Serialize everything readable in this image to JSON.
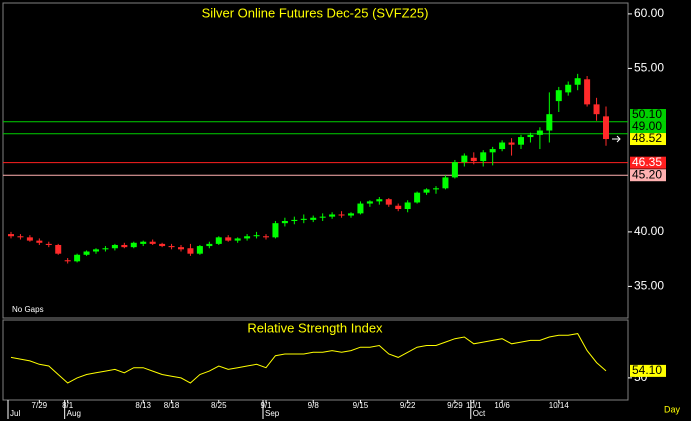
{
  "chart_data": [
    {
      "type": "candlestick",
      "title": "Silver Online Futures Dec-25 (SVFZ25)",
      "note": "No Gaps",
      "period": "Day",
      "categories": [
        null,
        null,
        null,
        "7/29",
        null,
        null,
        "8/1",
        null,
        null,
        null,
        null,
        null,
        null,
        null,
        "8/13",
        null,
        null,
        "8/18",
        null,
        null,
        null,
        null,
        "8/25",
        null,
        null,
        null,
        null,
        "9/1",
        null,
        null,
        null,
        null,
        "9/8",
        null,
        null,
        null,
        null,
        "9/15",
        null,
        null,
        null,
        null,
        "9/22",
        null,
        null,
        null,
        null,
        "9/29",
        null,
        "10/1",
        null,
        null,
        "10/6",
        null,
        null,
        null,
        null,
        null,
        "10/14",
        null,
        null,
        null,
        null,
        null
      ],
      "months": [
        "Jul",
        "Aug",
        "Sep",
        "Oct"
      ],
      "month_starts": [
        0,
        6,
        27,
        49
      ],
      "open": [
        39.8,
        39.6,
        39.5,
        39.2,
        38.9,
        38.8,
        37.4,
        37.3,
        37.9,
        38.2,
        38.4,
        38.5,
        38.8,
        38.6,
        38.9,
        39.1,
        38.9,
        38.7,
        38.6,
        38.5,
        38.0,
        38.7,
        38.9,
        39.5,
        39.2,
        39.4,
        39.6,
        39.6,
        39.5,
        40.8,
        41.0,
        41.1,
        41.1,
        41.3,
        41.4,
        41.6,
        41.5,
        41.7,
        42.6,
        42.8,
        43.0,
        42.4,
        42.1,
        42.7,
        43.6,
        43.9,
        44.0,
        45.0,
        46.4,
        46.8,
        46.5,
        47.3,
        47.6,
        48.2,
        48.0,
        48.7,
        48.9,
        49.3,
        52.0,
        52.8,
        53.5,
        54.0,
        51.7,
        50.6
      ],
      "high": [
        40.0,
        39.8,
        39.7,
        39.4,
        39.1,
        38.9,
        37.6,
        38.0,
        38.3,
        38.5,
        38.7,
        38.9,
        39.0,
        39.1,
        39.2,
        39.3,
        39.0,
        38.9,
        38.8,
        38.9,
        38.8,
        39.1,
        39.6,
        39.7,
        39.5,
        39.8,
        40.0,
        39.8,
        41.0,
        41.3,
        41.4,
        41.6,
        41.5,
        41.7,
        41.8,
        41.9,
        41.8,
        42.8,
        42.9,
        43.2,
        43.1,
        42.6,
        42.9,
        43.7,
        44.0,
        44.2,
        45.2,
        46.6,
        47.2,
        47.3,
        47.5,
        47.8,
        48.4,
        48.6,
        48.9,
        49.1,
        49.6,
        52.8,
        53.3,
        53.8,
        54.5,
        54.3,
        52.3,
        51.5
      ],
      "low": [
        39.4,
        39.3,
        39.1,
        38.8,
        38.6,
        37.9,
        37.1,
        37.2,
        37.8,
        38.0,
        38.2,
        38.3,
        38.5,
        38.5,
        38.7,
        38.8,
        38.6,
        38.4,
        38.2,
        37.8,
        37.9,
        38.5,
        38.8,
        39.1,
        39.0,
        39.2,
        39.4,
        39.3,
        39.4,
        40.5,
        40.7,
        40.8,
        40.9,
        41.0,
        41.2,
        41.3,
        41.3,
        41.6,
        42.3,
        42.5,
        42.3,
        41.9,
        41.8,
        42.6,
        43.4,
        43.5,
        43.9,
        44.9,
        46.0,
        46.2,
        46.0,
        46.1,
        47.4,
        47.0,
        47.6,
        48.2,
        47.6,
        48.2,
        51.0,
        52.5,
        53.0,
        51.5,
        50.2,
        47.9
      ],
      "close": [
        39.6,
        39.5,
        39.2,
        39.0,
        38.8,
        38.0,
        37.3,
        37.9,
        38.2,
        38.4,
        38.5,
        38.8,
        38.6,
        39.0,
        39.1,
        38.9,
        38.7,
        38.6,
        38.4,
        38.0,
        38.7,
        38.9,
        39.5,
        39.2,
        39.4,
        39.6,
        39.7,
        39.5,
        40.8,
        41.0,
        41.1,
        41.2,
        41.3,
        41.4,
        41.6,
        41.5,
        41.7,
        42.6,
        42.8,
        43.0,
        42.5,
        42.1,
        42.7,
        43.6,
        43.9,
        44.0,
        45.0,
        46.4,
        47.0,
        46.5,
        47.3,
        47.6,
        48.2,
        48.0,
        48.7,
        48.9,
        49.3,
        50.8,
        53.0,
        53.5,
        54.1,
        51.7,
        50.8,
        48.52
      ],
      "up_color": "#00ff00",
      "down_color": "#ff2a2a",
      "ylim": [
        32.1,
        61.0
      ],
      "yticks": [
        {
          "value": 60,
          "label": "60.00"
        },
        {
          "value": 55,
          "label": "55.00"
        },
        {
          "value": 40,
          "label": "40.00"
        },
        {
          "value": 35,
          "label": "35.00"
        }
      ],
      "levels": [
        {
          "value": 50.1,
          "label": "50.10",
          "color": "#00d000",
          "text_color": "#000000",
          "line": true
        },
        {
          "value": 49,
          "label": "49.00",
          "color": "#00d000",
          "text_color": "#000000",
          "line": true
        },
        {
          "value": 48.52,
          "color": "#ffff00",
          "text_color": "#000000",
          "line": false
        },
        {
          "value": 46.35,
          "color": "#ff2020",
          "text_color": "#ffffff",
          "line": true
        },
        {
          "value": 45.2,
          "label": "45.20",
          "color": "#ffb0b0",
          "text_color": "#000000",
          "line": true
        }
      ]
    },
    {
      "type": "line",
      "title": "Relative Strength Index",
      "values": [
        62,
        61,
        60,
        58,
        57,
        52,
        47,
        50,
        52,
        53,
        54,
        55,
        53,
        56,
        56,
        54,
        52,
        51,
        50,
        47,
        52,
        54,
        57,
        55,
        56,
        57,
        58,
        56,
        63,
        64,
        64,
        64,
        65,
        65,
        66,
        65,
        66,
        68,
        68,
        69,
        64,
        62,
        65,
        68,
        69,
        69,
        71,
        73,
        74,
        70,
        71,
        72,
        73,
        70,
        71,
        72,
        72,
        74,
        75,
        75,
        76,
        66,
        59,
        54.1
      ],
      "value_labels": [
        null,
        null,
        null,
        null,
        null,
        null,
        null,
        null,
        null,
        null,
        null,
        null,
        null,
        null,
        null,
        null,
        null,
        null,
        null,
        null,
        null,
        null,
        null,
        null,
        null,
        null,
        null,
        null,
        null,
        null,
        null,
        null,
        null,
        null,
        null,
        null,
        null,
        null,
        null,
        null,
        null,
        null,
        null,
        null,
        null,
        null,
        null,
        null,
        null,
        null,
        null,
        null,
        null,
        null,
        null,
        null,
        null,
        null,
        null,
        null,
        null,
        null,
        null,
        "54.10"
      ],
      "color": "#ffff00",
      "label_color": "#ffff00",
      "ylim": [
        37,
        84
      ],
      "yticks": [
        50
      ]
    }
  ]
}
